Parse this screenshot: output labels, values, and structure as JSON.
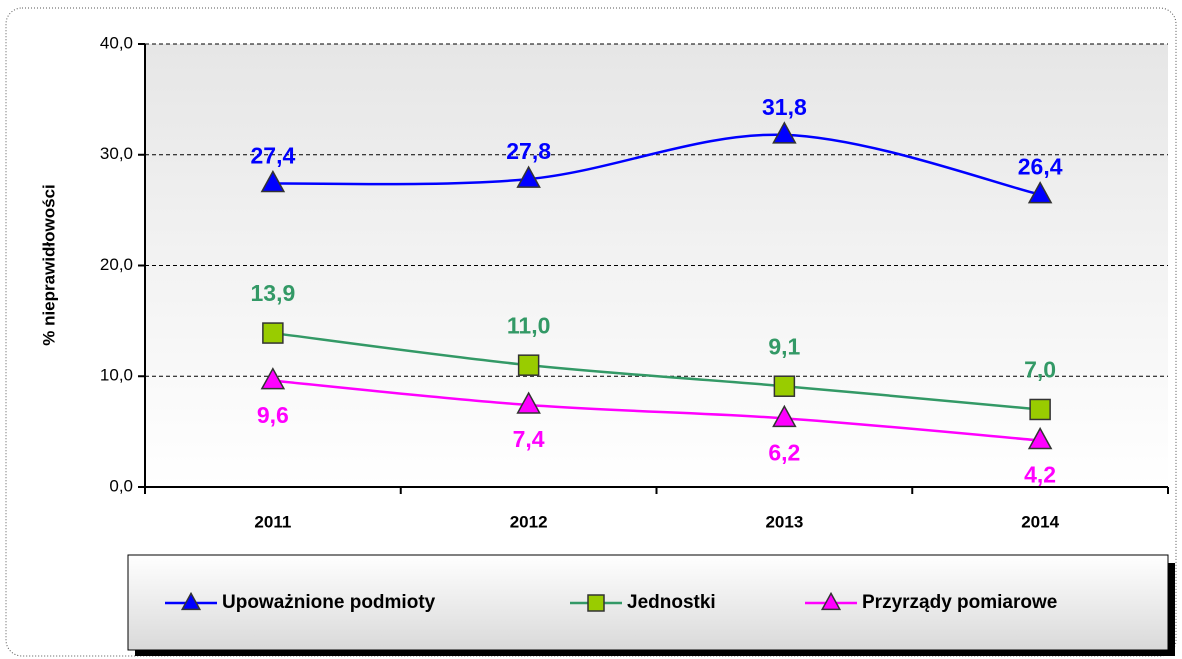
{
  "chart_data": {
    "type": "line",
    "y_label": "% nieprawidłowości",
    "categories": [
      "2011",
      "2012",
      "2013",
      "2014"
    ],
    "series": [
      {
        "name": "Upoważnione podmioty",
        "color": "#0000ff",
        "marker": "triangle",
        "marker_fill": "#0000ff",
        "values": [
          27.4,
          27.8,
          31.8,
          26.4
        ],
        "value_labels": [
          "27,4",
          "27,8",
          "31,8",
          "26,4"
        ]
      },
      {
        "name": "Jednostki",
        "color": "#339966",
        "marker": "square",
        "marker_fill": "#99cc00",
        "values": [
          13.9,
          11.0,
          9.1,
          7.0
        ],
        "value_labels": [
          "13,9",
          "11,0",
          "9,1",
          "7,0"
        ]
      },
      {
        "name": "Przyrządy pomiarowe",
        "color": "#ff00ff",
        "marker": "triangle",
        "marker_fill": "#ff00ff",
        "values": [
          9.6,
          7.4,
          6.2,
          4.2
        ],
        "value_labels": [
          "9,6",
          "7,4",
          "6,2",
          "4,2"
        ]
      }
    ],
    "ylim": [
      0,
      40
    ],
    "yticks": [
      {
        "value": 0,
        "label": "0,0"
      },
      {
        "value": 10,
        "label": "10,0"
      },
      {
        "value": 20,
        "label": "20,0"
      },
      {
        "value": 30,
        "label": "30,0"
      },
      {
        "value": 40,
        "label": "40,0"
      }
    ],
    "grid": true,
    "smooth": true,
    "legend": "bottom"
  }
}
